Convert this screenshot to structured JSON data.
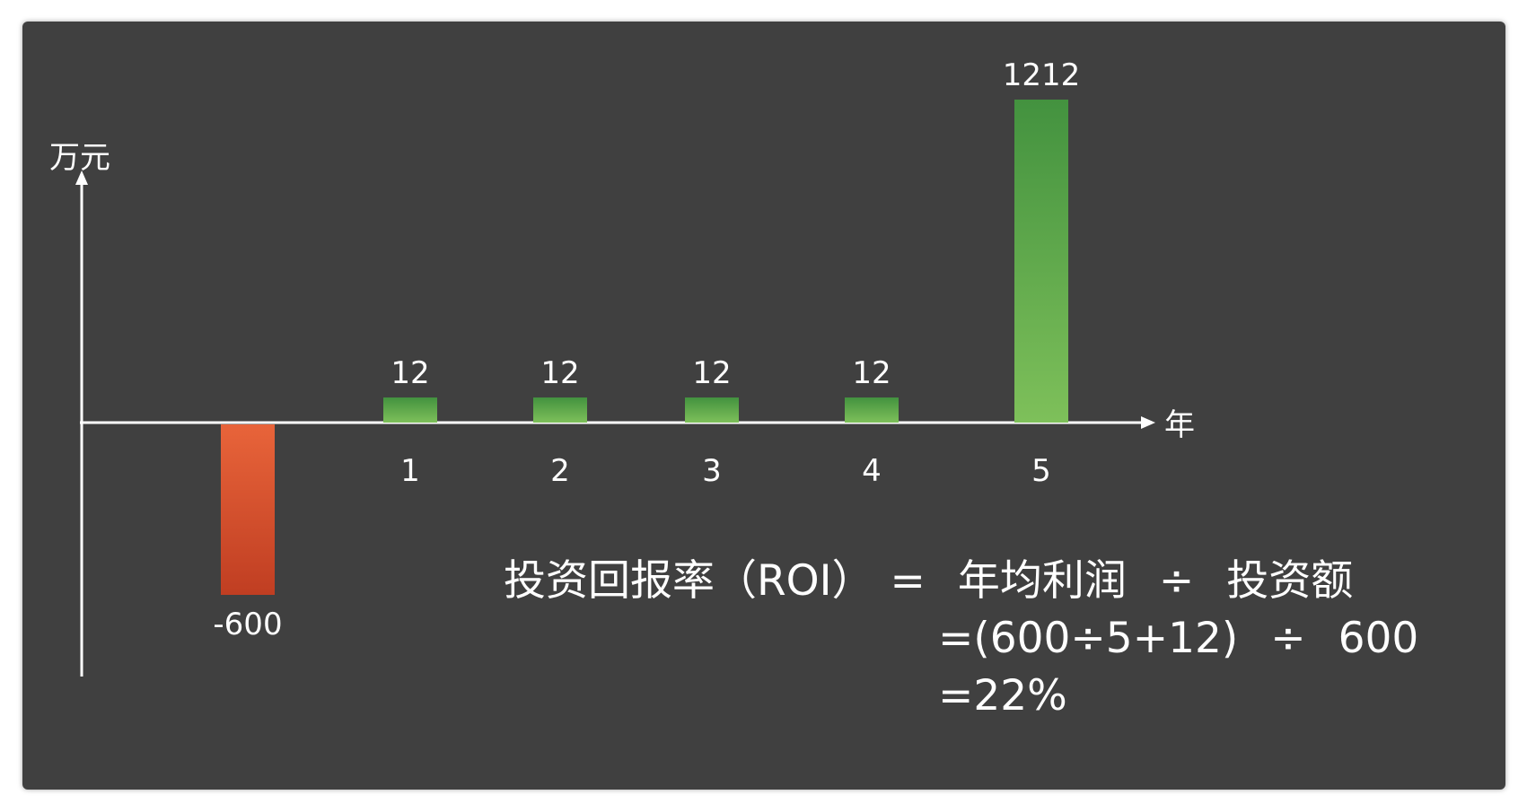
{
  "chart_data": {
    "type": "bar",
    "categories": [
      "",
      "1",
      "2",
      "3",
      "4",
      "5"
    ],
    "values": [
      -600,
      12,
      12,
      12,
      12,
      1212
    ],
    "value_labels": [
      "-600",
      "12",
      "12",
      "12",
      "12",
      "1212"
    ],
    "title": "",
    "xlabel": "年",
    "ylabel": "万元",
    "ylim": [
      -900,
      1350
    ],
    "grid": false,
    "colors": {
      "positive_top": "#43923f",
      "positive_bottom": "#7ec05a",
      "negative_top": "#e8643a",
      "negative_bottom": "#c03e22"
    }
  },
  "formula": {
    "line1": {
      "term": "投资回报率（ROI）",
      "eq": "=",
      "numerator": "年均利润",
      "op": "÷",
      "denominator": "投资额"
    },
    "line2": {
      "expr": "=(600÷5+12)",
      "op": "÷",
      "value": "600"
    },
    "line3": {
      "result": "=22%"
    }
  },
  "colors": {
    "background": "#404040",
    "text": "#ffffff"
  }
}
